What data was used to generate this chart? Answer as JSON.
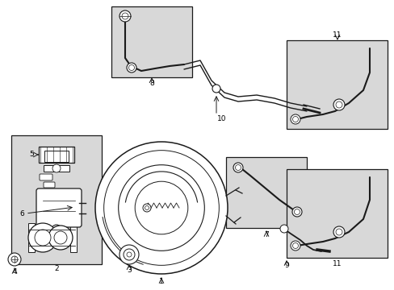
{
  "bg_color": "#ffffff",
  "line_color": "#1a1a1a",
  "box_fill": "#d8d8d8",
  "fig_w": 4.89,
  "fig_h": 3.6,
  "dpi": 100
}
